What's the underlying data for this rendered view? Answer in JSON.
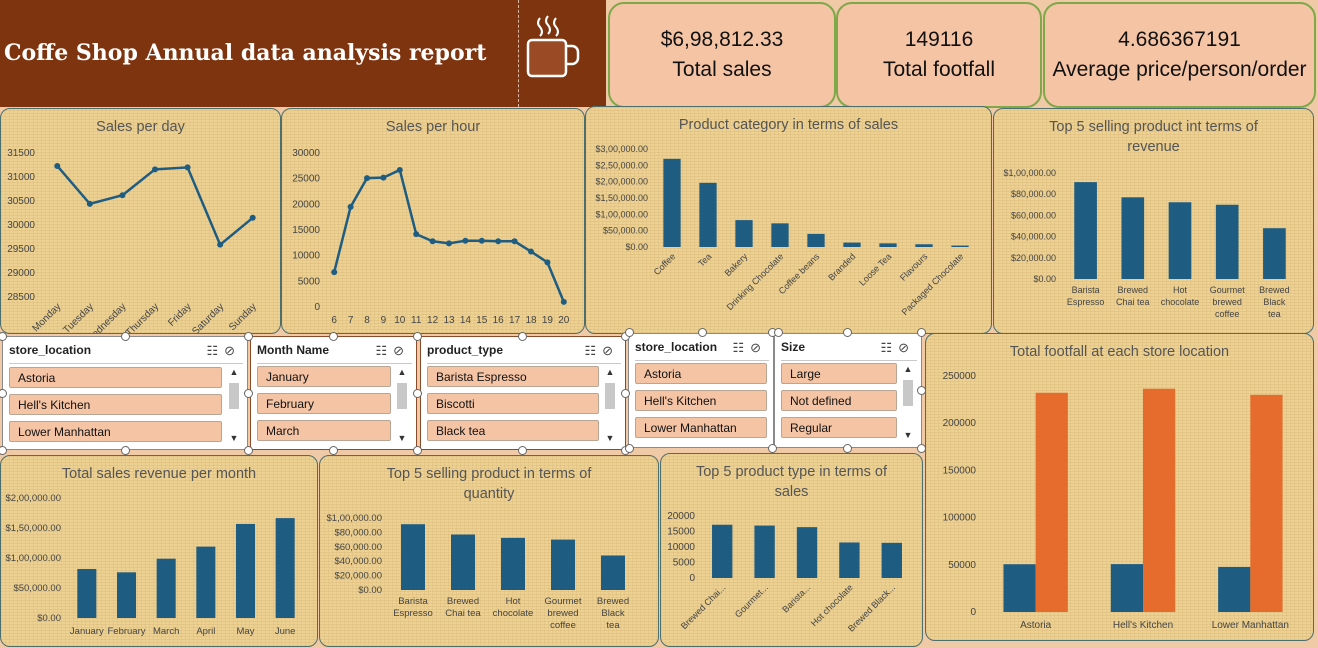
{
  "header": {
    "title": "Coffe Shop Annual data analysis report",
    "bg_color": "#7f3410",
    "icon": "coffee-cup-icon"
  },
  "kpis": [
    {
      "value": "$6,98,812.33",
      "label": "Total sales"
    },
    {
      "value": "149116",
      "label": "Total footfall"
    },
    {
      "value": "4.686367191",
      "label": "Average price/person/order"
    }
  ],
  "colors": {
    "bar_blue": "#1f5c82",
    "bar_orange": "#e56c2c",
    "line": "#1f5c82",
    "kpi_bg": "#f4c4a5",
    "kpi_border": "#7fa84a"
  },
  "slicers": [
    {
      "header": "store_location",
      "items": [
        "Astoria",
        "Hell's Kitchen",
        "Lower Manhattan"
      ]
    },
    {
      "header": "Month Name",
      "items": [
        "January",
        "February",
        "March"
      ]
    },
    {
      "header": "product_type",
      "items": [
        "Barista Espresso",
        "Biscotti",
        "Black tea"
      ]
    },
    {
      "header": "store_location",
      "items": [
        "Astoria",
        "Hell's Kitchen",
        "Lower Manhattan"
      ]
    },
    {
      "header": "Size",
      "items": [
        "Large",
        "Not defined",
        "Regular"
      ]
    }
  ],
  "chart_data": [
    {
      "id": "sales_per_day",
      "type": "line",
      "title": "Sales per day",
      "categories": [
        "Monday",
        "Tuesday",
        "Wednesday",
        "Thursday",
        "Friday",
        "Saturday",
        "Sunday"
      ],
      "values": [
        31230,
        30440,
        30620,
        31160,
        31200,
        29590,
        30150
      ],
      "ylim": [
        28500,
        31500
      ],
      "yticks": [
        "31500",
        "31000",
        "30500",
        "30000",
        "29500",
        "29000",
        "28500"
      ]
    },
    {
      "id": "sales_per_hour",
      "type": "line",
      "title": "Sales per hour",
      "categories": [
        "6",
        "7",
        "8",
        "9",
        "10",
        "11",
        "12",
        "13",
        "14",
        "15",
        "16",
        "17",
        "18",
        "19",
        "20"
      ],
      "values": [
        6800,
        19500,
        25100,
        25200,
        26700,
        14200,
        12800,
        12400,
        12900,
        12900,
        12800,
        12800,
        10800,
        8700,
        1000
      ],
      "ylim": [
        0,
        30000
      ],
      "yticks": [
        "30000",
        "25000",
        "20000",
        "15000",
        "10000",
        "5000",
        "0"
      ]
    },
    {
      "id": "product_category",
      "type": "bar",
      "title": "Product category in terms of sales",
      "categories": [
        "Coffee",
        "Tea",
        "Bakery",
        "Drinking Chocolate",
        "Coffee beans",
        "Branded",
        "Loose Tea",
        "Flavours",
        "Packaged Chocolate"
      ],
      "values": [
        269952,
        196406,
        82316,
        72416,
        40085,
        13607,
        11213,
        8408,
        4408
      ],
      "ylim": [
        0,
        300000
      ],
      "yticks": [
        "$3,00,000.00",
        "$2,50,000.00",
        "$2,00,000.00",
        "$1,50,000.00",
        "$1,00,000.00",
        "$50,000.00",
        "$0.00"
      ]
    },
    {
      "id": "top5_revenue",
      "type": "bar",
      "title": "Top 5 selling product int terms of revenue",
      "categories": [
        "Barista Espresso",
        "Brewed Chai tea",
        "Hot chocolate",
        "Gourmet brewed coffee",
        "Brewed Black tea"
      ],
      "values": [
        91406,
        77082,
        72416,
        70035,
        47932
      ],
      "ylim": [
        0,
        100000
      ],
      "yticks": [
        "$1,00,000.00",
        "$80,000.00",
        "$60,000.00",
        "$40,000.00",
        "$20,000.00",
        "$0.00"
      ]
    },
    {
      "id": "sales_per_month",
      "type": "bar",
      "title": "Total sales revenue per month",
      "categories": [
        "January",
        "February",
        "March",
        "April",
        "May",
        "June"
      ],
      "values": [
        81678,
        76145,
        98835,
        118941,
        156728,
        166486
      ],
      "ylim": [
        0,
        200000
      ],
      "yticks": [
        "$2,00,000.00",
        "$1,50,000.00",
        "$1,00,000.00",
        "$50,000.00",
        "$0.00"
      ]
    },
    {
      "id": "top5_quantity",
      "type": "bar",
      "title": "Top 5 selling product in terms of quantity",
      "categories": [
        "Barista Espresso",
        "Brewed Chai tea",
        "Hot chocolate",
        "Gourmet brewed coffee",
        "Brewed Black tea"
      ],
      "values": [
        91406,
        77082,
        72416,
        70035,
        47932
      ],
      "ylim": [
        0,
        100000
      ],
      "yticks": [
        "$1,00,000.00",
        "$80,000.00",
        "$60,000.00",
        "$40,000.00",
        "$20,000.00",
        "$0.00"
      ]
    },
    {
      "id": "top5_type_sales",
      "type": "bar",
      "title": "Top 5 product type in terms of sales",
      "categories": [
        "Brewed Chai...",
        "Gourmet...",
        "Barista...",
        "Hot chocolate",
        "Brewed Black..."
      ],
      "values": [
        17183,
        16912,
        16403,
        11468,
        11350
      ],
      "ylim": [
        0,
        20000
      ],
      "yticks": [
        "20000",
        "15000",
        "10000",
        "5000",
        "0"
      ]
    },
    {
      "id": "footfall_store",
      "type": "bar",
      "title": "Total footfall at each store location",
      "categories": [
        "Astoria",
        "Hell's Kitchen",
        "Lower Manhattan"
      ],
      "series": [
        {
          "values": [
            50599,
            50735,
            47782
          ]
        },
        {
          "values": [
            232243,
            236511,
            230057
          ]
        }
      ],
      "ylim": [
        0,
        250000
      ],
      "yticks": [
        "250000",
        "200000",
        "150000",
        "100000",
        "50000",
        "0"
      ]
    }
  ]
}
